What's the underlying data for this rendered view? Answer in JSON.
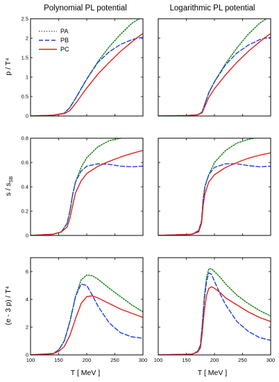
{
  "titles": {
    "left": "Polynomial PL potential",
    "right": "Logarithmic PL potential"
  },
  "ylabels": [
    "p / T⁴",
    "s / s",
    "(e - 3 p) / T⁴"
  ],
  "ylabel_sub": "SB",
  "xlabel": "T  [ MeV ]",
  "legend": [
    {
      "name": "PA",
      "color": "#1a8a1a",
      "dash": "dot"
    },
    {
      "name": "PB",
      "color": "#1f3fd8",
      "dash": "dash"
    },
    {
      "name": "PC",
      "color": "#e0201c",
      "dash": "solid"
    }
  ],
  "chart_data": [
    {
      "type": "line",
      "panel": "p-polynomial",
      "xlim": [
        100,
        300
      ],
      "ylim": [
        0,
        2.5
      ],
      "xticks": [
        100,
        150,
        200,
        250,
        300
      ],
      "yticks": [
        0,
        0.5,
        1.0,
        1.5,
        2.0,
        2.5
      ],
      "series": [
        {
          "name": "PA",
          "x": [
            100,
            140,
            160,
            170,
            180,
            190,
            200,
            220,
            240,
            260,
            280,
            290,
            300
          ],
          "y": [
            0,
            0.02,
            0.07,
            0.22,
            0.45,
            0.7,
            0.95,
            1.4,
            1.78,
            2.1,
            2.38,
            2.47,
            2.55
          ]
        },
        {
          "name": "PB",
          "x": [
            100,
            140,
            160,
            170,
            180,
            190,
            200,
            220,
            240,
            260,
            280,
            290,
            300
          ],
          "y": [
            0,
            0.02,
            0.07,
            0.22,
            0.45,
            0.7,
            0.95,
            1.38,
            1.65,
            1.84,
            1.96,
            2.0,
            2.02
          ]
        },
        {
          "name": "PC",
          "x": [
            100,
            140,
            160,
            170,
            180,
            190,
            200,
            220,
            240,
            260,
            280,
            290,
            300
          ],
          "y": [
            0,
            0.02,
            0.06,
            0.14,
            0.32,
            0.52,
            0.72,
            1.08,
            1.38,
            1.66,
            1.9,
            2.02,
            2.12
          ]
        }
      ]
    },
    {
      "type": "line",
      "panel": "p-logarithmic",
      "xlim": [
        100,
        300
      ],
      "ylim": [
        0,
        2.5
      ],
      "xticks": [
        100,
        150,
        200,
        250,
        300
      ],
      "yticks": [
        0,
        0.5,
        1.0,
        1.5,
        2.0,
        2.5
      ],
      "series": [
        {
          "name": "PA",
          "x": [
            100,
            150,
            170,
            178,
            185,
            190,
            200,
            220,
            240,
            260,
            280,
            290,
            300
          ],
          "y": [
            0,
            0.01,
            0.03,
            0.1,
            0.4,
            0.6,
            0.88,
            1.35,
            1.75,
            2.1,
            2.38,
            2.48,
            2.55
          ]
        },
        {
          "name": "PB",
          "x": [
            100,
            150,
            170,
            178,
            185,
            190,
            200,
            220,
            240,
            260,
            280,
            290,
            300
          ],
          "y": [
            0,
            0.01,
            0.03,
            0.1,
            0.4,
            0.6,
            0.88,
            1.32,
            1.62,
            1.82,
            1.96,
            2.0,
            2.02
          ]
        },
        {
          "name": "PC",
          "x": [
            100,
            150,
            170,
            178,
            185,
            190,
            200,
            220,
            240,
            260,
            280,
            290,
            300
          ],
          "y": [
            0,
            0.01,
            0.03,
            0.08,
            0.32,
            0.48,
            0.7,
            1.06,
            1.38,
            1.66,
            1.9,
            2.02,
            2.12
          ]
        }
      ]
    },
    {
      "type": "line",
      "panel": "s-polynomial",
      "xlim": [
        100,
        300
      ],
      "ylim": [
        0,
        0.8
      ],
      "xticks": [
        100,
        150,
        200,
        250,
        300
      ],
      "yticks": [
        0,
        0.2,
        0.4,
        0.6,
        0.8
      ],
      "series": [
        {
          "name": "PA",
          "x": [
            100,
            140,
            155,
            165,
            170,
            175,
            180,
            190,
            200,
            220,
            240,
            260,
            280,
            300
          ],
          "y": [
            0,
            0.01,
            0.03,
            0.1,
            0.2,
            0.34,
            0.44,
            0.56,
            0.64,
            0.73,
            0.78,
            0.8,
            0.81,
            0.82
          ]
        },
        {
          "name": "PB",
          "x": [
            100,
            140,
            155,
            165,
            170,
            175,
            180,
            190,
            200,
            220,
            240,
            260,
            280,
            300
          ],
          "y": [
            0,
            0.01,
            0.03,
            0.1,
            0.2,
            0.34,
            0.44,
            0.53,
            0.57,
            0.59,
            0.585,
            0.57,
            0.565,
            0.57
          ]
        },
        {
          "name": "PC",
          "x": [
            100,
            140,
            155,
            165,
            170,
            175,
            180,
            190,
            200,
            220,
            240,
            260,
            280,
            300
          ],
          "y": [
            0,
            0.01,
            0.03,
            0.07,
            0.14,
            0.25,
            0.35,
            0.45,
            0.51,
            0.57,
            0.61,
            0.645,
            0.675,
            0.7
          ]
        }
      ]
    },
    {
      "type": "line",
      "panel": "s-logarithmic",
      "xlim": [
        100,
        300
      ],
      "ylim": [
        0,
        0.8
      ],
      "xticks": [
        100,
        150,
        200,
        250,
        300
      ],
      "yticks": [
        0,
        0.2,
        0.4,
        0.6,
        0.8
      ],
      "series": [
        {
          "name": "PA",
          "x": [
            100,
            160,
            172,
            177,
            180,
            183,
            187,
            190,
            200,
            220,
            240,
            260,
            280,
            300
          ],
          "y": [
            0,
            0.01,
            0.04,
            0.12,
            0.3,
            0.4,
            0.46,
            0.5,
            0.6,
            0.7,
            0.76,
            0.79,
            0.81,
            0.82
          ]
        },
        {
          "name": "PB",
          "x": [
            100,
            160,
            172,
            177,
            180,
            183,
            187,
            190,
            200,
            220,
            240,
            260,
            280,
            300
          ],
          "y": [
            0,
            0.01,
            0.04,
            0.12,
            0.3,
            0.4,
            0.46,
            0.5,
            0.56,
            0.59,
            0.59,
            0.575,
            0.565,
            0.57
          ]
        },
        {
          "name": "PC",
          "x": [
            100,
            160,
            172,
            177,
            180,
            183,
            187,
            190,
            200,
            220,
            240,
            260,
            280,
            300
          ],
          "y": [
            0,
            0.01,
            0.03,
            0.1,
            0.25,
            0.34,
            0.4,
            0.44,
            0.5,
            0.56,
            0.6,
            0.635,
            0.66,
            0.68
          ]
        }
      ]
    },
    {
      "type": "line",
      "panel": "trace-polynomial",
      "xlim": [
        100,
        300
      ],
      "ylim": [
        0,
        7
      ],
      "xticks": [
        100,
        150,
        200,
        250,
        300
      ],
      "yticks": [
        0,
        2,
        4,
        6
      ],
      "series": [
        {
          "name": "PA",
          "x": [
            100,
            140,
            150,
            160,
            170,
            180,
            190,
            200,
            210,
            220,
            240,
            260,
            280,
            300
          ],
          "y": [
            0,
            0.1,
            0.35,
            1.0,
            2.4,
            4.2,
            5.4,
            5.75,
            5.7,
            5.45,
            4.8,
            4.2,
            3.6,
            3.1
          ]
        },
        {
          "name": "PB",
          "x": [
            100,
            140,
            150,
            160,
            170,
            180,
            190,
            200,
            210,
            220,
            240,
            260,
            280,
            300
          ],
          "y": [
            0,
            0.1,
            0.35,
            1.0,
            2.4,
            4.2,
            5.1,
            5.0,
            4.3,
            3.5,
            2.3,
            1.6,
            1.3,
            1.2
          ]
        },
        {
          "name": "PC",
          "x": [
            100,
            140,
            150,
            160,
            170,
            180,
            190,
            200,
            210,
            220,
            240,
            260,
            280,
            300
          ],
          "y": [
            0,
            0.08,
            0.25,
            0.6,
            1.4,
            2.6,
            3.7,
            4.2,
            4.25,
            4.1,
            3.7,
            3.3,
            3.0,
            2.7
          ]
        }
      ]
    },
    {
      "type": "line",
      "panel": "trace-logarithmic",
      "xlim": [
        100,
        300
      ],
      "ylim": [
        0,
        7
      ],
      "xticks": [
        100,
        150,
        200,
        250,
        300
      ],
      "yticks": [
        0,
        2,
        4,
        6
      ],
      "series": [
        {
          "name": "PA",
          "x": [
            100,
            160,
            170,
            175,
            178,
            182,
            186,
            190,
            195,
            200,
            210,
            220,
            240,
            260,
            280,
            300
          ],
          "y": [
            0,
            0.05,
            0.25,
            0.7,
            2.0,
            4.2,
            5.6,
            6.2,
            6.2,
            6.0,
            5.6,
            5.1,
            4.3,
            3.7,
            3.2,
            2.8
          ]
        },
        {
          "name": "PB",
          "x": [
            100,
            160,
            170,
            175,
            178,
            182,
            186,
            190,
            195,
            200,
            210,
            220,
            240,
            260,
            280,
            300
          ],
          "y": [
            0,
            0.05,
            0.25,
            0.7,
            2.0,
            4.0,
            5.3,
            5.9,
            5.8,
            5.3,
            4.4,
            3.6,
            2.4,
            1.7,
            1.25,
            1.05
          ]
        },
        {
          "name": "PC",
          "x": [
            100,
            160,
            170,
            175,
            178,
            182,
            186,
            190,
            195,
            200,
            210,
            220,
            240,
            260,
            280,
            300
          ],
          "y": [
            0,
            0.05,
            0.2,
            0.5,
            1.5,
            3.2,
            4.3,
            4.8,
            4.9,
            4.8,
            4.5,
            4.1,
            3.6,
            3.1,
            2.7,
            2.4
          ]
        }
      ]
    }
  ]
}
